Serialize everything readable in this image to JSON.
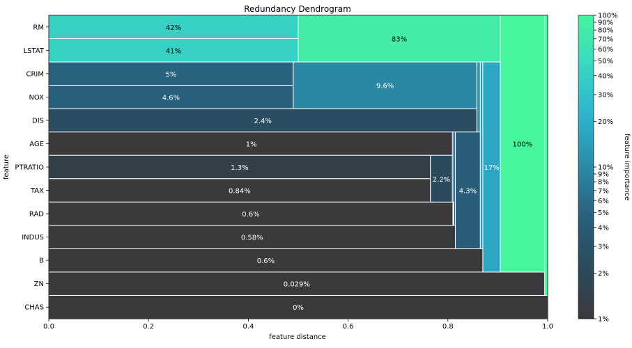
{
  "chart_data": {
    "type": "dendrogram",
    "title": "Redundancy Dendrogram",
    "xlabel": "feature distance",
    "ylabel": "feature",
    "xlim": [
      0,
      1
    ],
    "xticks": [
      "0.0",
      "0.2",
      "0.4",
      "0.6",
      "0.8",
      "1.0"
    ],
    "features": [
      "RM",
      "LSTAT",
      "CRIM",
      "NOX",
      "DIS",
      "AGE",
      "PTRATIO",
      "TAX",
      "RAD",
      "INDUS",
      "B",
      "ZN",
      "CHAS"
    ],
    "leaves": [
      {
        "feature": "RM",
        "distance": 0.5,
        "importance": 0.42,
        "label": "42%"
      },
      {
        "feature": "LSTAT",
        "distance": 0.5,
        "importance": 0.41,
        "label": "41%"
      },
      {
        "feature": "CRIM",
        "distance": 0.49,
        "importance": 0.05,
        "label": "5%"
      },
      {
        "feature": "NOX",
        "distance": 0.49,
        "importance": 0.046,
        "label": "4.6%"
      },
      {
        "feature": "DIS",
        "distance": 0.858,
        "importance": 0.024,
        "label": "2.4%"
      },
      {
        "feature": "AGE",
        "distance": 0.812,
        "importance": 0.01,
        "label": "1%"
      },
      {
        "feature": "PTRATIO",
        "distance": 0.765,
        "importance": 0.013,
        "label": "1.3%"
      },
      {
        "feature": "TAX",
        "distance": 0.765,
        "importance": 0.0084,
        "label": "0.84%"
      },
      {
        "feature": "RAD",
        "distance": 0.81,
        "importance": 0.006,
        "label": "0.6%"
      },
      {
        "feature": "INDUS",
        "distance": 0.815,
        "importance": 0.0058,
        "label": "0.58%"
      },
      {
        "feature": "B",
        "distance": 0.87,
        "importance": 0.006,
        "label": "0.6%"
      },
      {
        "feature": "ZN",
        "distance": 0.994,
        "importance": 0.00029,
        "label": "0.029%"
      },
      {
        "feature": "CHAS",
        "distance": 1.0,
        "importance": 0.0,
        "label": "0%"
      }
    ],
    "clusters": [
      {
        "members": [
          "RM",
          "LSTAT"
        ],
        "x_from": 0.5,
        "x_to": 0.905,
        "importance": 0.83,
        "label": "83%"
      },
      {
        "members": [
          "CRIM",
          "NOX"
        ],
        "x_from": 0.49,
        "x_to": 0.858,
        "importance": 0.096,
        "label": "9.6%"
      },
      {
        "members": [
          "CRIM",
          "NOX",
          "DIS"
        ],
        "x_from": 0.858,
        "x_to": 0.865,
        "importance": 0.12,
        "label": ""
      },
      {
        "members": [
          "PTRATIO",
          "TAX"
        ],
        "x_from": 0.765,
        "x_to": 0.809,
        "importance": 0.022,
        "label": "2.2%"
      },
      {
        "members": [
          "AGE",
          "PTRATIO",
          "TAX"
        ],
        "x_from": 0.809,
        "x_to": 0.812,
        "importance": 0.032,
        "label": ""
      },
      {
        "members": [
          "AGE",
          "PTRATIO",
          "TAX",
          "RAD"
        ],
        "x_from": 0.812,
        "x_to": 0.815,
        "importance": 0.038,
        "label": ""
      },
      {
        "members": [
          "AGE",
          "PTRATIO",
          "TAX",
          "RAD",
          "INDUS"
        ],
        "x_from": 0.815,
        "x_to": 0.865,
        "importance": 0.043,
        "label": "4.3%"
      },
      {
        "members": [
          "CRIM",
          "NOX",
          "DIS",
          "AGE",
          "PTRATIO",
          "TAX",
          "RAD",
          "INDUS"
        ],
        "x_from": 0.865,
        "x_to": 0.87,
        "importance": 0.16,
        "label": ""
      },
      {
        "members": [
          "CRIM",
          "NOX",
          "DIS",
          "AGE",
          "PTRATIO",
          "TAX",
          "RAD",
          "INDUS",
          "B"
        ],
        "x_from": 0.87,
        "x_to": 0.905,
        "importance": 0.17,
        "label": "17%"
      },
      {
        "members": [
          "RM",
          "LSTAT",
          "CRIM",
          "NOX",
          "DIS",
          "AGE",
          "PTRATIO",
          "TAX",
          "RAD",
          "INDUS",
          "B"
        ],
        "x_from": 0.905,
        "x_to": 0.994,
        "importance": 1.0,
        "label": "100%"
      },
      {
        "members": [
          "RM",
          "LSTAT",
          "CRIM",
          "NOX",
          "DIS",
          "AGE",
          "PTRATIO",
          "TAX",
          "RAD",
          "INDUS",
          "B",
          "ZN"
        ],
        "x_from": 0.994,
        "x_to": 1.0,
        "importance": 1.0,
        "label": ""
      }
    ],
    "colorbar": {
      "label": "feature importance",
      "scale": "log",
      "range": [
        0.01,
        1.0
      ],
      "ticks": [
        {
          "value": 1.0,
          "label": "100%"
        },
        {
          "value": 0.9,
          "label": "90%"
        },
        {
          "value": 0.8,
          "label": "80%"
        },
        {
          "value": 0.7,
          "label": "70%"
        },
        {
          "value": 0.6,
          "label": "60%"
        },
        {
          "value": 0.5,
          "label": "50%"
        },
        {
          "value": 0.4,
          "label": "40%"
        },
        {
          "value": 0.3,
          "label": "30%"
        },
        {
          "value": 0.2,
          "label": "20%"
        },
        {
          "value": 0.1,
          "label": "10%"
        },
        {
          "value": 0.09,
          "label": "9%"
        },
        {
          "value": 0.08,
          "label": "8%"
        },
        {
          "value": 0.07,
          "label": "7%"
        },
        {
          "value": 0.06,
          "label": "6%"
        },
        {
          "value": 0.05,
          "label": "5%"
        },
        {
          "value": 0.04,
          "label": "4%"
        },
        {
          "value": 0.03,
          "label": "3%"
        },
        {
          "value": 0.02,
          "label": "2%"
        },
        {
          "value": 0.01,
          "label": "1%"
        }
      ],
      "colors": [
        "#3a393c",
        "#2b4a5c",
        "#295f7c",
        "#2b8aa6",
        "#2eb2cf",
        "#38d6c2",
        "#46f59c"
      ]
    },
    "grid": false
  }
}
